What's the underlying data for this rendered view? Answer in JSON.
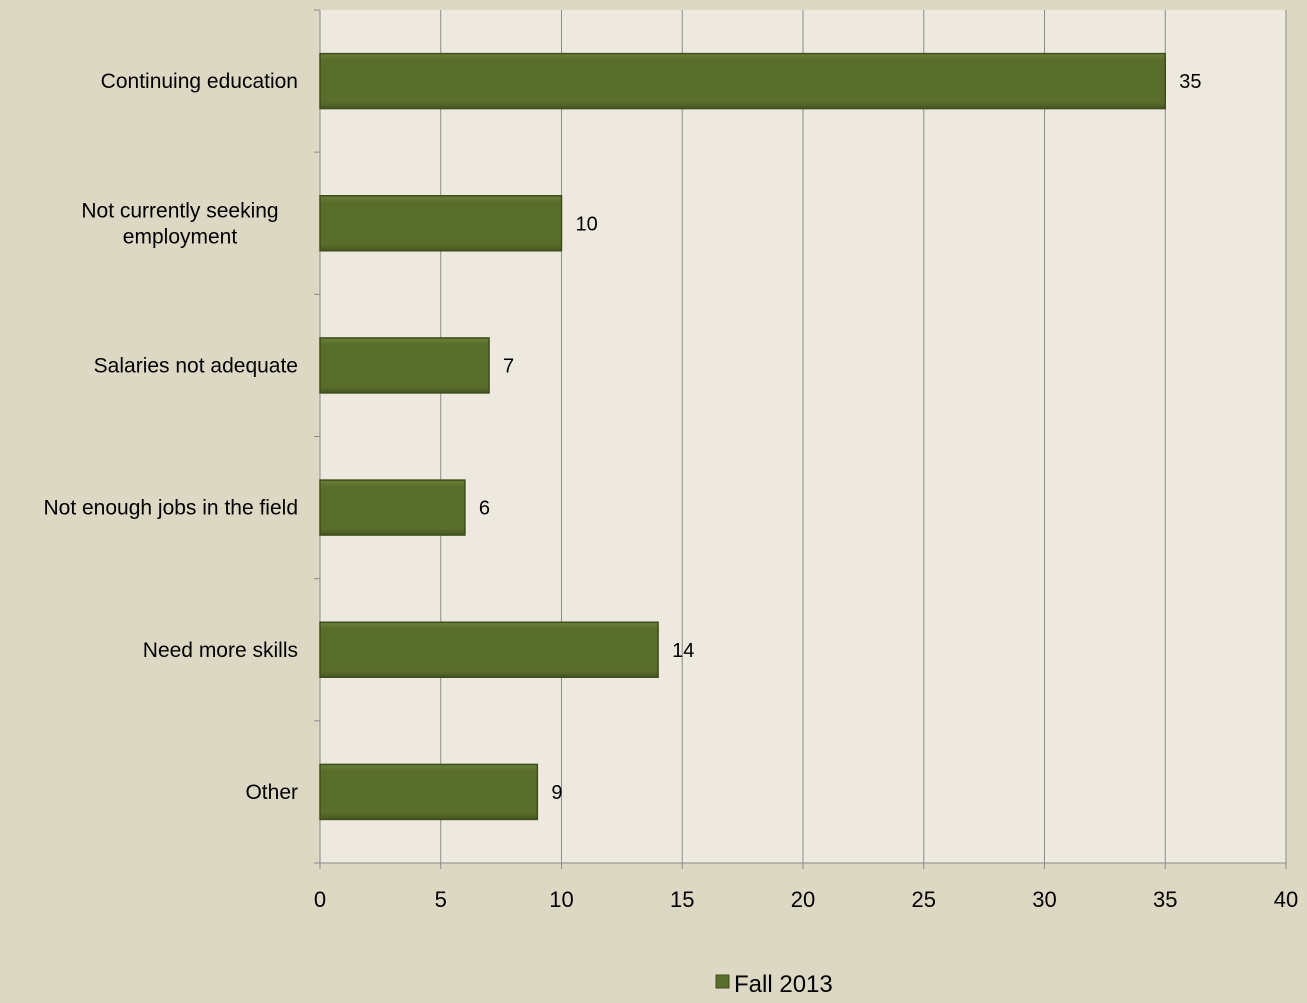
{
  "chart_data": {
    "type": "bar",
    "orientation": "horizontal",
    "categories": [
      "Continuing education",
      "Not currently seeking employment",
      "Salaries not adequate",
      "Not enough jobs in the field",
      "Need more skills",
      "Other"
    ],
    "category_lines": [
      [
        "Continuing education"
      ],
      [
        "Not currently seeking",
        "employment"
      ],
      [
        "Salaries not adequate"
      ],
      [
        "Not enough jobs in the field"
      ],
      [
        "Need more skills"
      ],
      [
        "Other"
      ]
    ],
    "series": [
      {
        "name": "Fall 2013",
        "values": [
          35,
          10,
          7,
          6,
          14,
          9
        ],
        "color": "#5a6e2c"
      }
    ],
    "data_labels": [
      "35",
      "10",
      "7",
      "6",
      "14",
      "9"
    ],
    "xlim": [
      0,
      40
    ],
    "x_ticks": [
      0,
      5,
      10,
      15,
      20,
      25,
      30,
      35,
      40
    ],
    "x_tick_labels": [
      "0",
      "5",
      "10",
      "15",
      "20",
      "25",
      "30",
      "35",
      "40"
    ],
    "grid": "vertical",
    "legend_position": "bottom-center",
    "colors": {
      "page_background": "#ddd8c4",
      "plot_background": "#ede9df",
      "bar_fill": "#5a6e2c",
      "bar_edge": "#3e4d1d",
      "gridline": "#8c8c8c",
      "axis": "#8c8c8c",
      "text": "#000000"
    }
  },
  "legend": {
    "label": "Fall 2013"
  }
}
